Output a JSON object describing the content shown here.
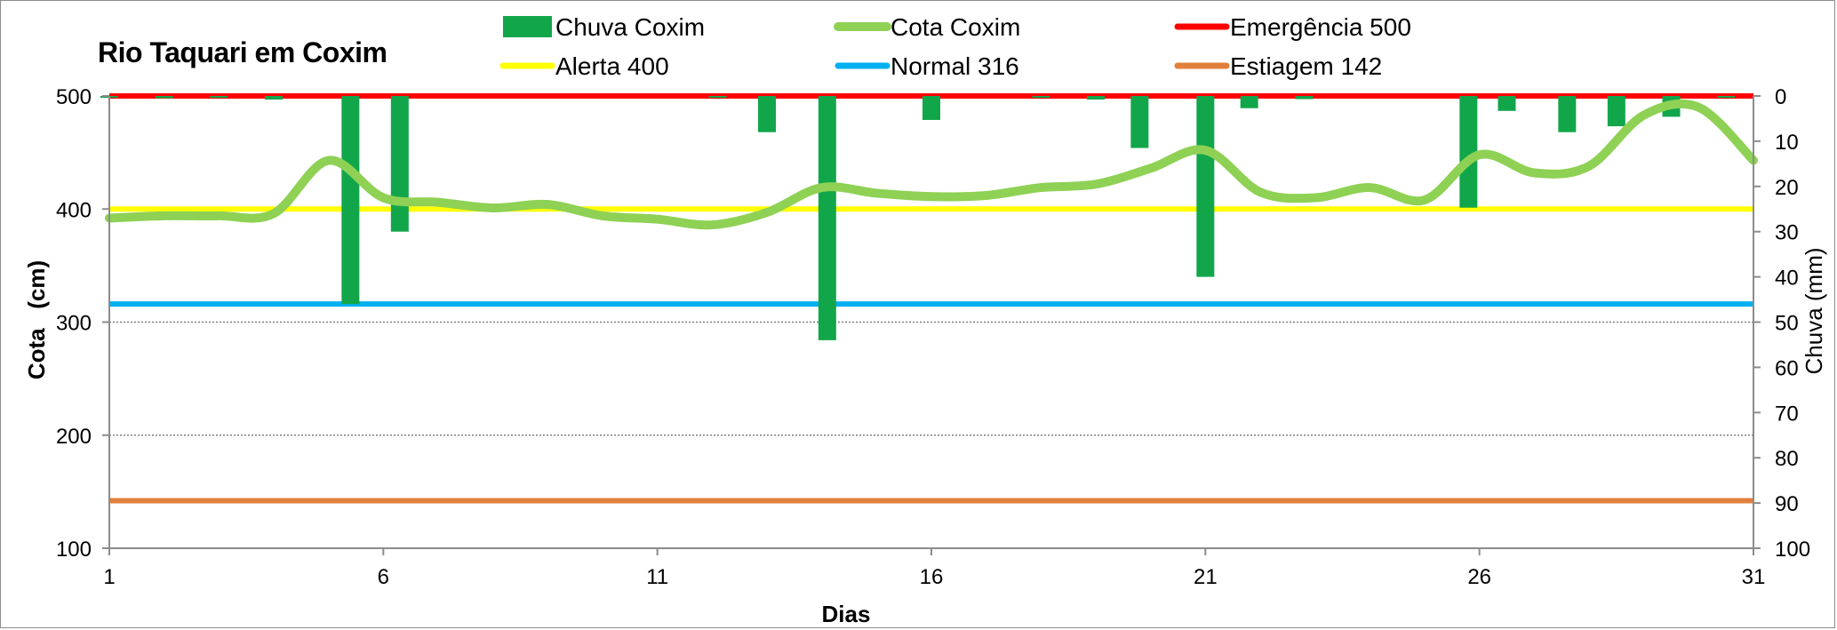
{
  "chart_data": {
    "type": "bar+line",
    "title": "Rio Taquari em Coxim",
    "xlabel": "Dias",
    "ylabel_left": "Cota   (cm)",
    "ylabel_right": "Chuva (mm)",
    "x_ticks": [
      "1",
      "6",
      "11",
      "16",
      "21",
      "26",
      "31"
    ],
    "x_range": [
      1,
      31
    ],
    "y_left_ticks": [
      "100",
      "200",
      "300",
      "400",
      "500"
    ],
    "y_left_range": [
      100,
      500
    ],
    "y_right_ticks": [
      "0",
      "10",
      "20",
      "30",
      "40",
      "50",
      "60",
      "70",
      "80",
      "90",
      "100"
    ],
    "y_right_range": [
      0,
      100
    ],
    "y_right_inverted": true,
    "gridlines_left": [
      200,
      300
    ],
    "legend_position": "top",
    "series": [
      {
        "name": "Chuva Coxim",
        "type": "bar",
        "axis": "right",
        "color": "#12a64a",
        "x": [
          1,
          2,
          3,
          4,
          5.4,
          6.3,
          12.1,
          13,
          14.1,
          16,
          18,
          19,
          19.8,
          21,
          21.8,
          22.8,
          25.8,
          26.5,
          27.6,
          28.5,
          29.5,
          30.5
        ],
        "values": [
          0.3,
          0.5,
          0.3,
          0.8,
          46,
          30,
          0.3,
          8,
          54,
          5.3,
          0.3,
          0.8,
          11.5,
          40,
          2.7,
          0.7,
          24.7,
          3.3,
          8,
          6.7,
          4.6,
          0.3
        ]
      },
      {
        "name": "Cota Coxim",
        "type": "line",
        "axis": "left",
        "color": "#8ed154",
        "x": [
          1,
          2,
          3,
          4,
          5,
          6,
          7,
          8,
          9,
          10,
          11,
          12,
          13,
          14,
          15,
          16,
          17,
          18,
          19,
          20,
          21,
          22,
          23,
          24,
          25,
          26,
          27,
          28,
          29,
          30,
          31
        ],
        "values": [
          392,
          394,
          394,
          396,
          443,
          410,
          406,
          401,
          404,
          394,
          391,
          386,
          397,
          419,
          414,
          411,
          412,
          419,
          422,
          436,
          452,
          415,
          410,
          419,
          408,
          448,
          432,
          438,
          483,
          490,
          443
        ]
      },
      {
        "name": "Emergência 500",
        "type": "hline",
        "axis": "left",
        "value": 500,
        "color": "#ff0000"
      },
      {
        "name": "Alerta 400",
        "type": "hline",
        "axis": "left",
        "value": 400,
        "color": "#ffff00"
      },
      {
        "name": "Normal  316",
        "type": "hline",
        "axis": "left",
        "value": 316,
        "color": "#00b0f0"
      },
      {
        "name": "Estiagem 142",
        "type": "hline",
        "axis": "left",
        "value": 142,
        "color": "#e0803c"
      }
    ]
  }
}
